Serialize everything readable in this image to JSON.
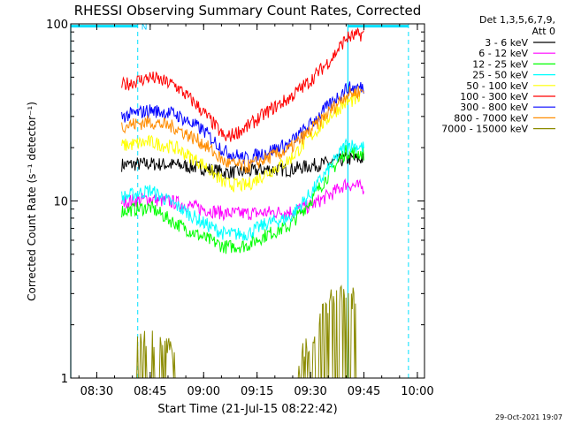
{
  "chart_data": {
    "type": "line",
    "title": "RHESSI Observing Summary Count Rates, Corrected",
    "xlabel": "Start Time (21-Jul-15 08:22:42)",
    "ylabel": "Corrected Count Rate (s⁻¹ detector⁻¹)",
    "y_scale": "log",
    "ylim": [
      1,
      100
    ],
    "xlim": [
      "08:22:42",
      "10:02:00"
    ],
    "x_ticks": [
      "08:30",
      "08:45",
      "09:00",
      "09:15",
      "09:30",
      "09:45",
      "10:00"
    ],
    "y_ticks": [
      "1",
      "10",
      "100"
    ],
    "grid": false,
    "legend_title": [
      "Det 1,3,5,6,7,9,",
      "Att 0"
    ],
    "legend_position": "right",
    "timestamp": "29-Oct-2021 19:07",
    "annotations": [
      {
        "text": "N",
        "x": "08:41:30"
      }
    ],
    "vertical_markers": {
      "dashed": [
        "08:41:30",
        "09:57:30"
      ],
      "solid": [
        "08:22:42",
        "09:40:30"
      ]
    },
    "flag_bars": [
      {
        "y": 97,
        "from": "08:22:42",
        "to": "08:41:30"
      },
      {
        "y": 97,
        "from": "09:40:30",
        "to": "09:57:30"
      }
    ],
    "series": [
      {
        "name": "3 - 6 keV",
        "color": "#000000",
        "points": [
          [
            "08:37",
            16
          ],
          [
            "08:45",
            16.2
          ],
          [
            "08:52",
            16
          ],
          [
            "09:00",
            15.3
          ],
          [
            "09:06",
            14.5
          ],
          [
            "09:12",
            14.6
          ],
          [
            "09:18",
            15.1
          ],
          [
            "09:24",
            15
          ],
          [
            "09:30",
            15.8
          ],
          [
            "09:36",
            16.5
          ],
          [
            "09:40",
            17.2
          ],
          [
            "09:45",
            17.3
          ]
        ]
      },
      {
        "name": "6 - 12 keV",
        "color": "#ff00ff",
        "points": [
          [
            "08:37",
            9.9
          ],
          [
            "08:45",
            10.3
          ],
          [
            "08:52",
            9.8
          ],
          [
            "09:00",
            9
          ],
          [
            "09:06",
            8.5
          ],
          [
            "09:12",
            8.5
          ],
          [
            "09:18",
            8.6
          ],
          [
            "09:24",
            8.7
          ],
          [
            "09:30",
            9.4
          ],
          [
            "09:36",
            11
          ],
          [
            "09:40",
            12.5
          ],
          [
            "09:45",
            11.8
          ]
        ]
      },
      {
        "name": "12 - 25 keV",
        "color": "#00ff00",
        "points": [
          [
            "08:37",
            8.8
          ],
          [
            "08:45",
            9.2
          ],
          [
            "08:52",
            7.5
          ],
          [
            "09:00",
            6.2
          ],
          [
            "09:06",
            5.5
          ],
          [
            "09:12",
            5.6
          ],
          [
            "09:18",
            6.5
          ],
          [
            "09:24",
            7.2
          ],
          [
            "09:30",
            10
          ],
          [
            "09:36",
            15
          ],
          [
            "09:40",
            19
          ],
          [
            "09:45",
            18.5
          ]
        ]
      },
      {
        "name": "25 - 50 keV",
        "color": "#00ffff",
        "points": [
          [
            "08:37",
            10.5
          ],
          [
            "08:45",
            11.5
          ],
          [
            "08:52",
            9.5
          ],
          [
            "09:00",
            7.5
          ],
          [
            "09:06",
            6.5
          ],
          [
            "09:12",
            6.5
          ],
          [
            "09:18",
            7.5
          ],
          [
            "09:24",
            8
          ],
          [
            "09:30",
            11
          ],
          [
            "09:36",
            16
          ],
          [
            "09:40",
            21
          ],
          [
            "09:45",
            20
          ]
        ]
      },
      {
        "name": "50 - 100 keV",
        "color": "#ffff00",
        "points": [
          [
            "08:37",
            20.5
          ],
          [
            "08:45",
            21.5
          ],
          [
            "08:52",
            20
          ],
          [
            "09:00",
            16
          ],
          [
            "09:06",
            12.5
          ],
          [
            "09:12",
            12.2
          ],
          [
            "09:18",
            14.5
          ],
          [
            "09:24",
            17
          ],
          [
            "09:30",
            23
          ],
          [
            "09:36",
            31
          ],
          [
            "09:40",
            36
          ],
          [
            "09:44",
            38
          ]
        ]
      },
      {
        "name": "100 - 300 keV",
        "color": "#ff0000",
        "points": [
          [
            "08:37",
            45
          ],
          [
            "08:45",
            50
          ],
          [
            "08:52",
            45
          ],
          [
            "08:58",
            35
          ],
          [
            "09:03",
            27
          ],
          [
            "09:06",
            22.5
          ],
          [
            "09:12",
            26
          ],
          [
            "09:18",
            32
          ],
          [
            "09:24",
            38
          ],
          [
            "09:30",
            48
          ],
          [
            "09:36",
            64
          ],
          [
            "09:40",
            83
          ],
          [
            "09:45",
            88
          ]
        ]
      },
      {
        "name": "300 - 800 keV",
        "color": "#0000ff",
        "points": [
          [
            "08:37",
            30
          ],
          [
            "08:45",
            32.5
          ],
          [
            "08:52",
            31
          ],
          [
            "09:00",
            25
          ],
          [
            "09:06",
            19
          ],
          [
            "09:12",
            17.3
          ],
          [
            "09:18",
            19
          ],
          [
            "09:24",
            21
          ],
          [
            "09:30",
            27
          ],
          [
            "09:36",
            36
          ],
          [
            "09:40",
            43
          ],
          [
            "09:45",
            44
          ]
        ]
      },
      {
        "name": "800 - 7000 keV",
        "color": "#ff8c00",
        "points": [
          [
            "08:37",
            26.5
          ],
          [
            "08:45",
            28
          ],
          [
            "08:52",
            26
          ],
          [
            "09:00",
            21
          ],
          [
            "09:06",
            16.5
          ],
          [
            "09:12",
            15.5
          ],
          [
            "09:18",
            17.5
          ],
          [
            "09:24",
            19.5
          ],
          [
            "09:30",
            25
          ],
          [
            "09:36",
            33
          ],
          [
            "09:40",
            40
          ],
          [
            "09:45",
            42
          ]
        ]
      },
      {
        "name": "7000 - 15000 keV",
        "color": "#8b8b00",
        "points": [
          [
            "08:41",
            1.7
          ],
          [
            "08:44",
            1.6
          ],
          [
            "08:47",
            1.7
          ],
          [
            "08:51",
            1.5
          ],
          [
            "08:53",
            1.0
          ],
          [
            "09:26",
            1.0
          ],
          [
            "09:28",
            1.5
          ],
          [
            "09:31",
            1.8
          ],
          [
            "09:34",
            2.6
          ],
          [
            "09:37",
            2.9
          ],
          [
            "09:40",
            3.1
          ],
          [
            "09:43",
            2.7
          ],
          [
            "09:44",
            1.0
          ]
        ]
      }
    ]
  }
}
